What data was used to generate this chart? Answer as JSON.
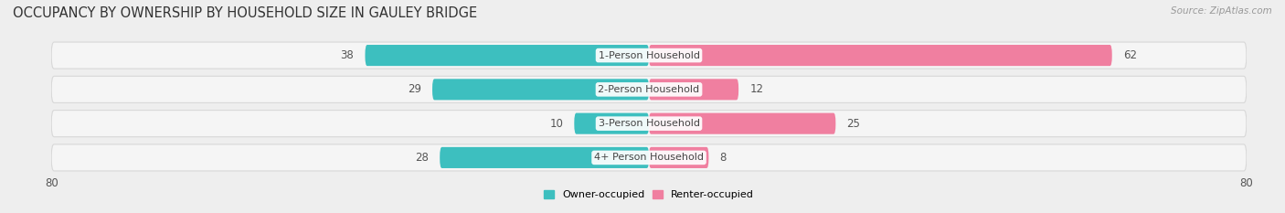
{
  "title": "OCCUPANCY BY OWNERSHIP BY HOUSEHOLD SIZE IN GAULEY BRIDGE",
  "source": "Source: ZipAtlas.com",
  "categories": [
    "1-Person Household",
    "2-Person Household",
    "3-Person Household",
    "4+ Person Household"
  ],
  "owner_values": [
    38,
    29,
    10,
    28
  ],
  "renter_values": [
    62,
    12,
    25,
    8
  ],
  "owner_color": "#3dbfbf",
  "renter_color": "#f07fa0",
  "background_color": "#eeeeee",
  "row_bg_color": "#f5f5f5",
  "row_border_color": "#d8d8d8",
  "max_val": 80,
  "legend_owner": "Owner-occupied",
  "legend_renter": "Renter-occupied",
  "title_fontsize": 10.5,
  "label_fontsize": 8,
  "value_fontsize": 8.5
}
